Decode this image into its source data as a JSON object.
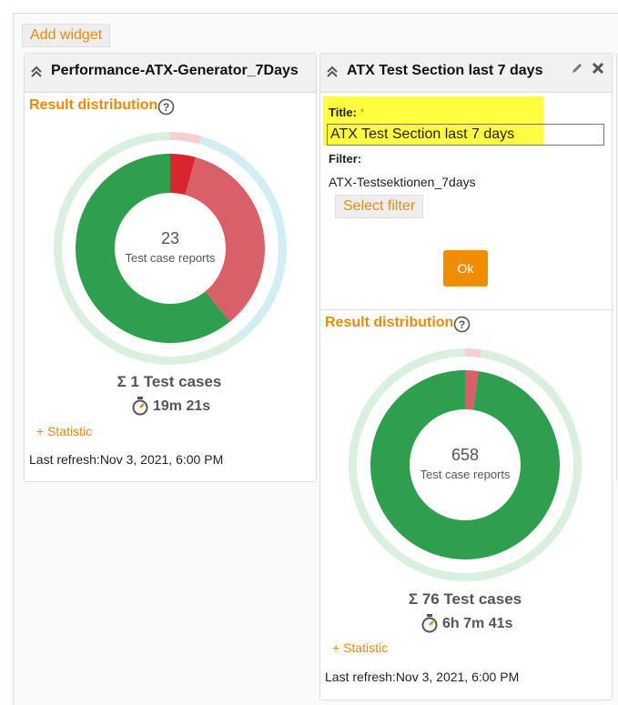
{
  "toolbar": {
    "add_widget": "Add widget"
  },
  "widgets": [
    {
      "title": "Performance-ATX-Generator_7Days",
      "section": "Result distribution",
      "chart": {
        "type": "donut",
        "total": 23,
        "total_label": "Test case reports",
        "segments": [
          {
            "value": 1,
            "color": "#d9262c",
            "ring_color": "#f6cfd1"
          },
          {
            "value": 8,
            "color": "#d95f69",
            "ring_color": "#d3eef2"
          },
          {
            "value": 14,
            "color": "#2e9e4f",
            "ring_color": "#d9f0df"
          }
        ]
      },
      "test_cases": "Σ 1 Test cases",
      "duration": "19m 21s",
      "statistic": "+ Statistic",
      "last_refresh": "Last refresh:Nov 3, 2021, 6:00 PM"
    },
    {
      "title": "ATX Test Section last 7 days",
      "form": {
        "title_label": "Title:",
        "required": "*",
        "title_value": "ATX Test Section last 7 days",
        "filter_label": "Filter:",
        "filter_value": "ATX-Testsektionen_7days",
        "select_filter": "Select filter",
        "ok": "Ok"
      },
      "section": "Result distribution",
      "chart": {
        "type": "donut",
        "total": 658,
        "total_label": "Test case reports",
        "segments": [
          {
            "value": 15,
            "color": "#d95f69",
            "ring_color": "#f6cfd1"
          },
          {
            "value": 643,
            "color": "#2e9e4f",
            "ring_color": "#d9f0df"
          }
        ]
      },
      "test_cases": "Σ 76 Test cases",
      "duration": "6h 7m 41s",
      "statistic": "+ Statistic",
      "last_refresh": "Last refresh:Nov 3, 2021, 6:00 PM"
    }
  ]
}
